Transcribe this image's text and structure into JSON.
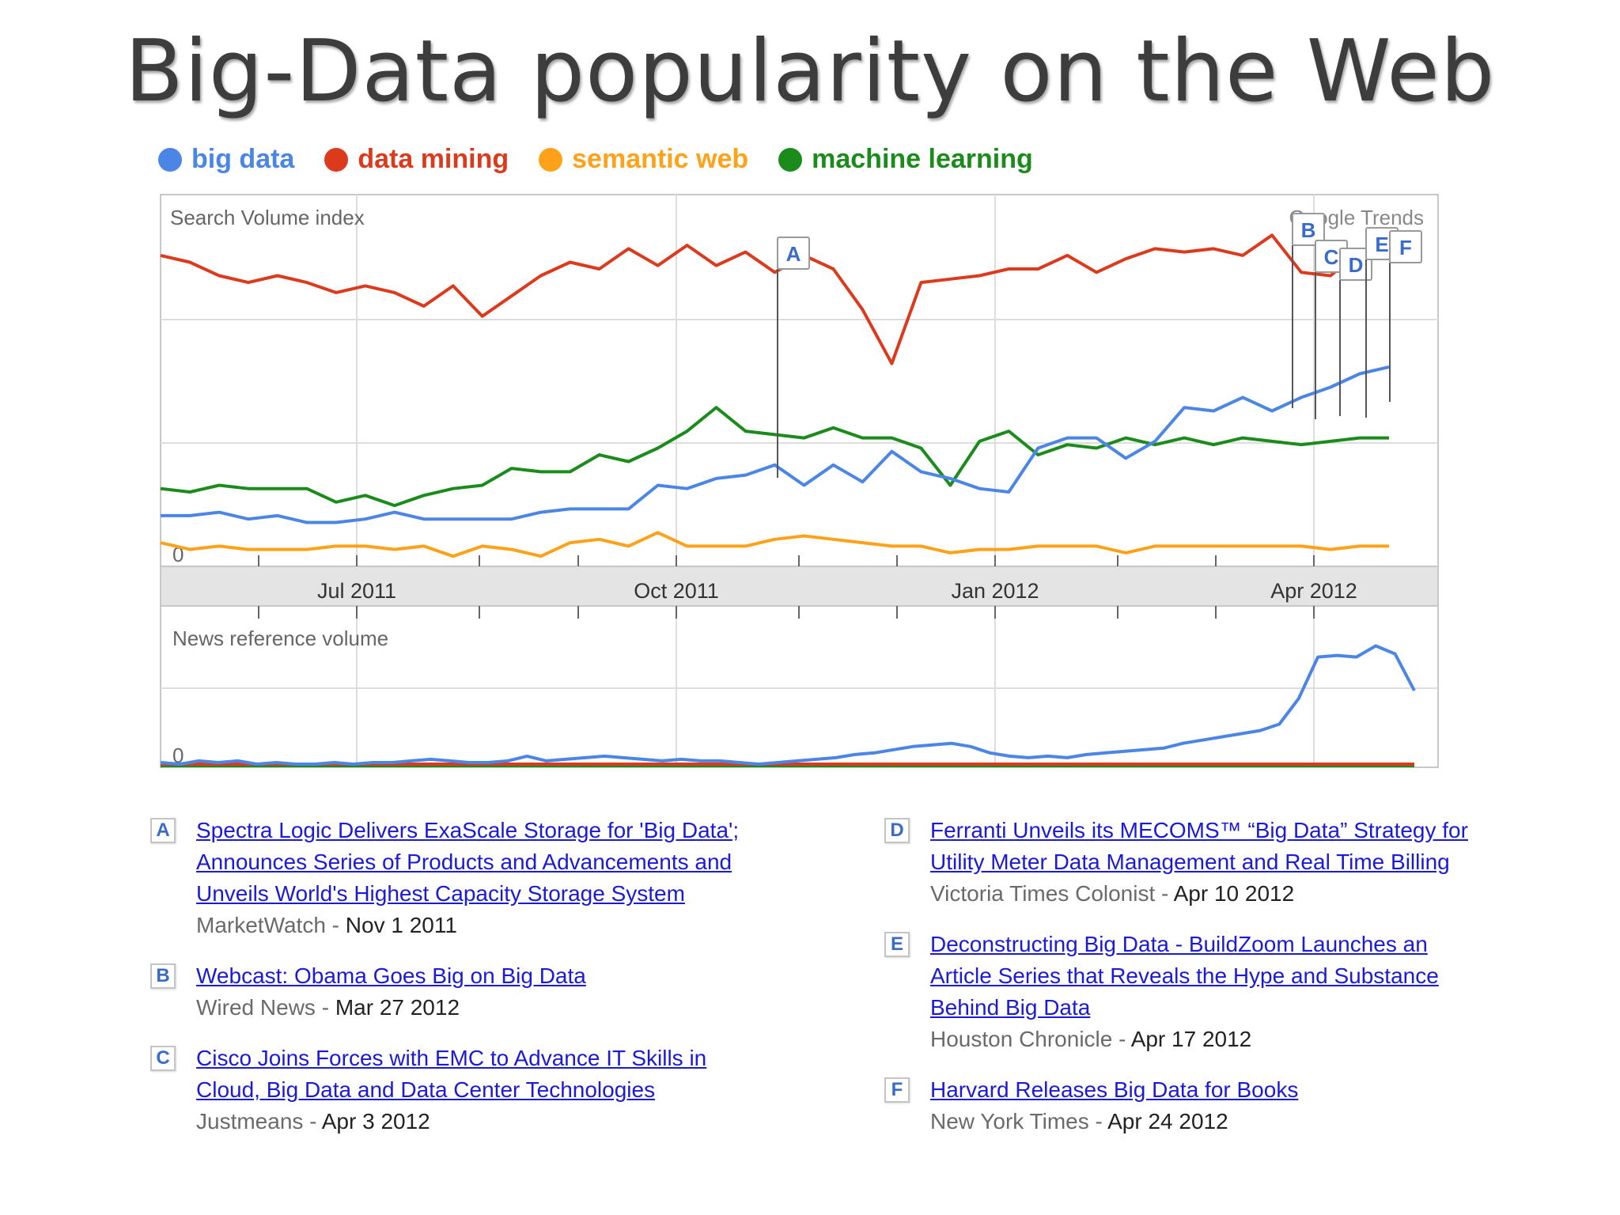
{
  "title": "Big-Data popularity on the Web",
  "legend": [
    {
      "label": "big data",
      "color": "#4b86e6"
    },
    {
      "label": "data mining",
      "color": "#dc3a1c"
    },
    {
      "label": "semantic web",
      "color": "#ffa21a"
    },
    {
      "label": "machine learning",
      "color": "#1b8b1b"
    }
  ],
  "chart_data": [
    {
      "type": "line",
      "title": "Search Volume index",
      "watermark": "Google Trends",
      "zero_label": "0",
      "x_tick_labels": [
        "Jul 2011",
        "Oct 2011",
        "Jan 2012",
        "Apr 2012"
      ],
      "ylim": [
        0,
        110
      ],
      "series": [
        {
          "name": "data mining",
          "color": "#dc3a1c",
          "values": [
            92,
            90,
            86,
            84,
            86,
            84,
            81,
            83,
            81,
            77,
            83,
            74,
            80,
            86,
            90,
            88,
            94,
            89,
            95,
            89,
            93,
            87,
            92,
            88,
            76,
            60,
            84,
            85,
            86,
            88,
            88,
            92,
            87,
            91,
            94,
            93,
            94,
            92,
            98,
            87,
            86,
            93,
            93
          ]
        },
        {
          "name": "machine learning",
          "color": "#1b8b1b",
          "values": [
            23,
            22,
            24,
            23,
            23,
            23,
            19,
            21,
            18,
            21,
            23,
            24,
            29,
            28,
            28,
            33,
            31,
            35,
            40,
            47,
            40,
            39,
            38,
            41,
            38,
            38,
            35,
            24,
            37,
            40,
            33,
            36,
            35,
            38,
            36,
            38,
            36,
            38,
            37,
            36,
            37,
            38,
            38
          ]
        },
        {
          "name": "big data",
          "color": "#4b86e6",
          "values": [
            15,
            15,
            16,
            14,
            15,
            13,
            13,
            14,
            16,
            14,
            14,
            14,
            14,
            16,
            17,
            17,
            17,
            24,
            23,
            26,
            27,
            30,
            24,
            30,
            25,
            34,
            28,
            26,
            23,
            22,
            35,
            38,
            38,
            32,
            37,
            47,
            46,
            50,
            46,
            50,
            53,
            57,
            59
          ]
        },
        {
          "name": "semantic web",
          "color": "#ffa21a",
          "values": [
            7,
            5,
            6,
            5,
            5,
            5,
            6,
            6,
            5,
            6,
            3,
            6,
            5,
            3,
            7,
            8,
            6,
            10,
            6,
            6,
            6,
            8,
            9,
            8,
            7,
            6,
            6,
            4,
            5,
            5,
            6,
            6,
            6,
            4,
            6,
            6,
            6,
            6,
            6,
            6,
            5,
            6,
            6
          ]
        }
      ],
      "annotations": [
        {
          "letter": "A",
          "index": 25
        },
        {
          "letter": "B",
          "index": 46
        },
        {
          "letter": "C",
          "index": 47
        },
        {
          "letter": "D",
          "index": 48
        },
        {
          "letter": "E",
          "index": 49
        },
        {
          "letter": "F",
          "index": 50
        }
      ]
    },
    {
      "type": "line",
      "title": "News reference volume",
      "zero_label": "0",
      "ylim": [
        0,
        100
      ],
      "series": [
        {
          "name": "big data",
          "color": "#4b86e6",
          "values": [
            2,
            1,
            3,
            2,
            3,
            1,
            2,
            1,
            1,
            2,
            1,
            2,
            2,
            3,
            4,
            3,
            2,
            2,
            3,
            6,
            3,
            4,
            5,
            6,
            5,
            4,
            3,
            4,
            3,
            3,
            2,
            1,
            2,
            3,
            4,
            5,
            7,
            8,
            10,
            12,
            13,
            14,
            12,
            8,
            6,
            5,
            6,
            5,
            7,
            8,
            9,
            10,
            11,
            14,
            16,
            18,
            20,
            22,
            26,
            42,
            68,
            69,
            68,
            75,
            70,
            47
          ]
        },
        {
          "name": "data mining",
          "color": "#dc3a1c",
          "values": [
            1,
            1,
            1,
            1,
            1,
            1,
            1,
            1,
            1,
            1,
            1,
            1,
            1,
            1,
            1,
            1,
            1,
            1,
            1,
            1,
            1,
            1,
            1,
            1,
            1,
            1,
            1,
            1,
            1,
            1,
            1,
            1,
            1,
            1,
            1,
            1,
            1,
            1,
            1,
            1,
            1,
            1,
            1,
            1,
            1,
            1,
            1,
            1,
            1,
            1,
            1,
            1,
            1,
            1,
            1,
            1,
            1,
            1,
            1,
            1,
            1,
            1,
            1,
            1,
            1,
            1
          ]
        },
        {
          "name": "machine learning",
          "color": "#1b8b1b",
          "values": [
            0,
            0,
            0,
            0,
            0,
            0,
            0,
            0,
            0,
            0,
            0,
            0,
            0,
            0,
            0,
            0,
            0,
            0,
            0,
            0,
            0,
            0,
            0,
            0,
            0,
            0,
            0,
            0,
            0,
            0,
            0,
            0,
            0,
            0,
            0,
            0,
            0,
            0,
            0,
            0,
            0,
            0,
            0,
            0,
            0,
            0,
            0,
            0,
            0,
            0,
            0,
            0,
            0,
            0,
            0,
            0,
            0,
            0,
            0,
            0,
            0,
            0,
            0,
            0,
            0,
            0
          ]
        }
      ]
    }
  ],
  "news_items": [
    {
      "letter": "A",
      "headline": "Spectra Logic Delivers ExaScale Storage for 'Big Data'; Announces Series of Products and Advancements and Unveils World's Highest Capacity Storage System",
      "source": "MarketWatch",
      "date": "Nov 1 2011"
    },
    {
      "letter": "B",
      "headline": "Webcast: Obama Goes Big on Big Data",
      "source": "Wired News",
      "date": "Mar 27 2012"
    },
    {
      "letter": "C",
      "headline": "Cisco Joins Forces with EMC to Advance IT Skills in Cloud, Big Data and Data Center Technologies",
      "source": "Justmeans",
      "date": "Apr 3 2012"
    },
    {
      "letter": "D",
      "headline": "Ferranti Unveils its MECOMS™ “Big Data” Strategy for Utility Meter Data Management and Real Time Billing",
      "source": "Victoria Times Colonist",
      "date": "Apr 10 2012"
    },
    {
      "letter": "E",
      "headline": "Deconstructing Big Data - BuildZoom Launches an Article Series that Reveals the Hype and Substance Behind Big Data",
      "source": "Houston Chronicle",
      "date": "Apr 17 2012"
    },
    {
      "letter": "F",
      "headline": "Harvard Releases Big Data for Books",
      "source": "New York Times",
      "date": "Apr 24 2012"
    }
  ]
}
